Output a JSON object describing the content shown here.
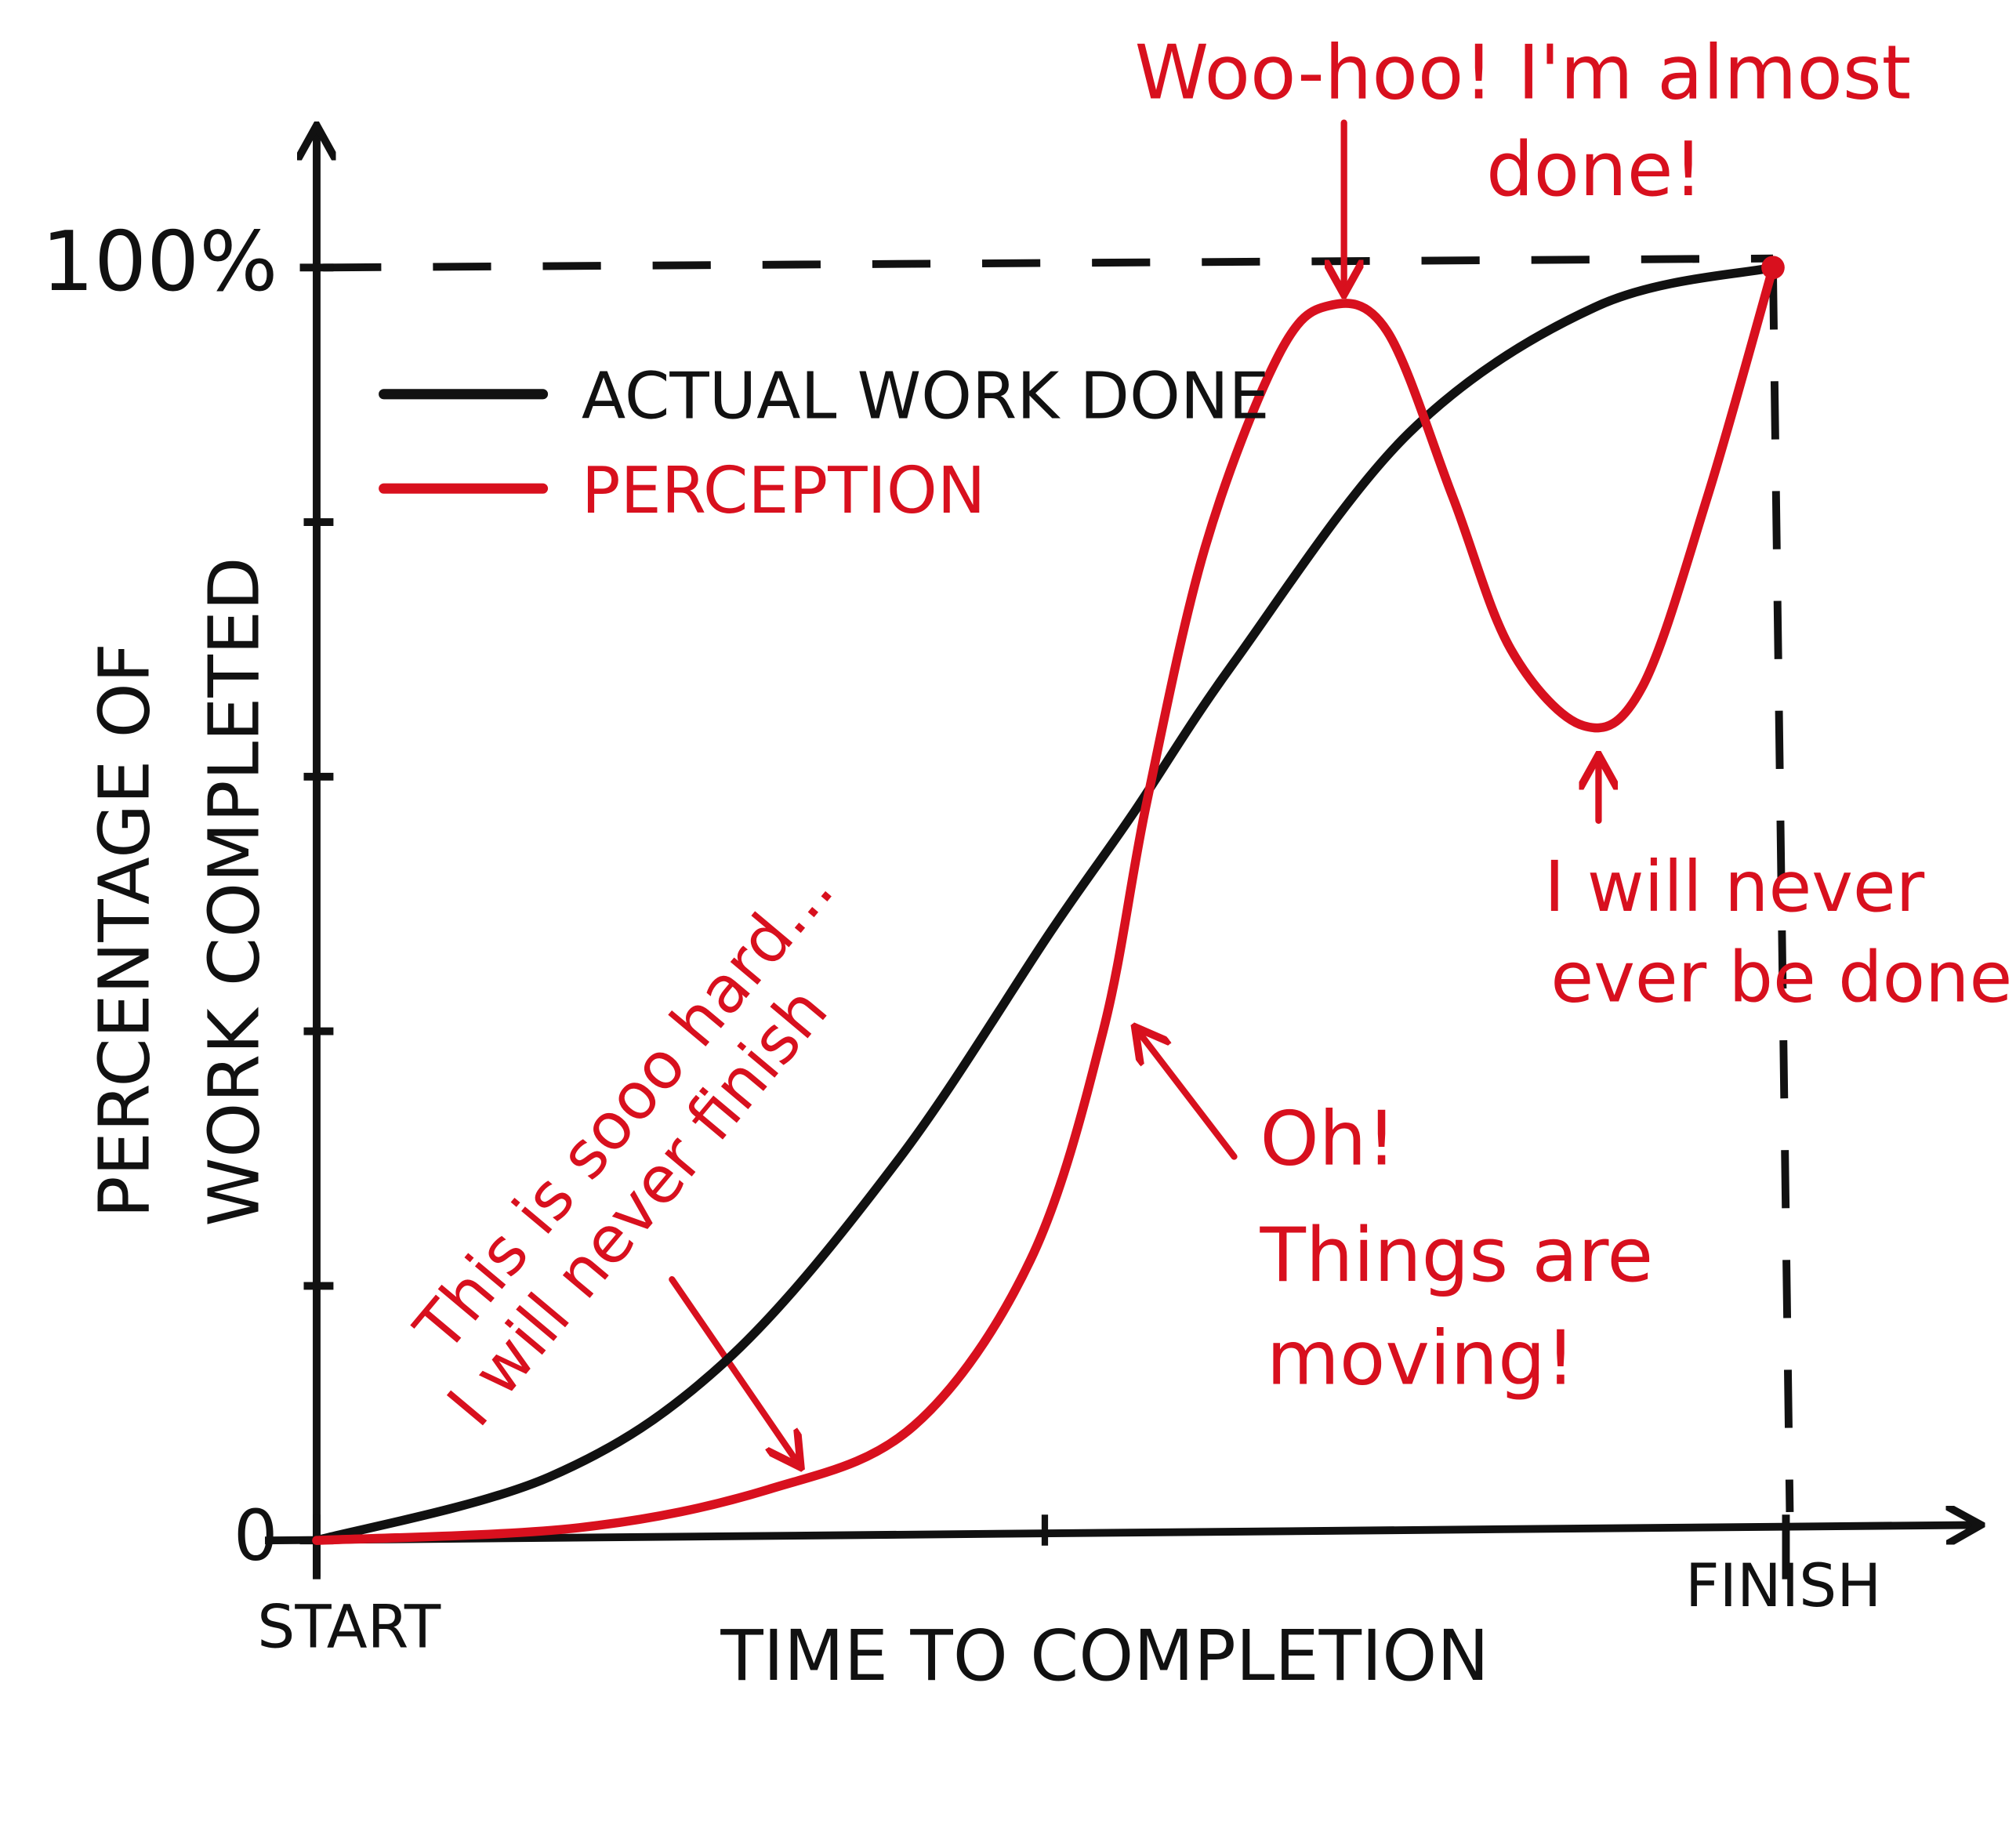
{
  "chart_data": {
    "type": "line",
    "x_label": "TIME TO COMPLETION",
    "y_label": [
      "PERCENTAGE OF",
      "WORK COMPLETED"
    ],
    "xlim": [
      0,
      100
    ],
    "ylim": [
      0,
      100
    ],
    "xticks": [
      {
        "value": 0,
        "label": "START"
      },
      {
        "value": 100,
        "label": "FINISH"
      }
    ],
    "yticks": [
      0,
      {
        "value": 100,
        "label": "100%"
      }
    ],
    "xminor_ticks": [
      50
    ],
    "yminor_ticks": [
      20,
      40,
      60,
      80
    ],
    "legend": "upper left",
    "series": [
      {
        "name": "ACTUAL WORK DONE",
        "color": "#111111",
        "x": [
          0,
          16,
          28,
          40,
          50.5,
          56,
          63,
          75,
          88,
          100
        ],
        "values": [
          0,
          5,
          14,
          30,
          48,
          57,
          69,
          87,
          97,
          100
        ]
      },
      {
        "name": "PERCEPTION",
        "color": "#d8101e",
        "x": [
          0,
          18,
          31,
          41,
          49,
          54,
          57,
          61,
          66,
          69.5,
          73.5,
          78,
          82,
          87,
          91,
          95.5,
          100
        ],
        "values": [
          0,
          1,
          4,
          9,
          22,
          40,
          58,
          78,
          93,
          97,
          95,
          82,
          70,
          64,
          67,
          82,
          100
        ]
      }
    ],
    "annotations": [
      {
        "lines": [
          "This is sooo hard...",
          "I will never finish"
        ]
      },
      {
        "lines": [
          "Oh!",
          "Things are",
          "moving!"
        ]
      },
      {
        "lines": [
          "Woo-hoo! I'm almost",
          "done!"
        ]
      },
      {
        "lines": [
          "I will never",
          "ever be done..."
        ]
      }
    ]
  }
}
